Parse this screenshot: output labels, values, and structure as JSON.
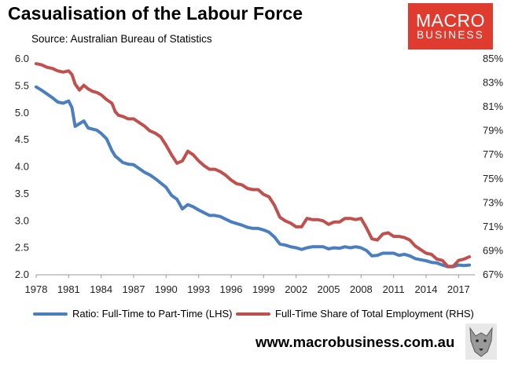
{
  "title": "Casualisation of the Labour Force",
  "source": "Source: Australian Bureau of Statistics",
  "logo": {
    "line1": "MACRO",
    "line2": "BUSINESS",
    "color": "#e03b2f"
  },
  "website": "www.macrobusiness.com.au",
  "chart_data": {
    "type": "line",
    "title": "Casualisation of the Labour Force",
    "x_ticks": [
      "1978",
      "1981",
      "1984",
      "1987",
      "1990",
      "1993",
      "1996",
      "1999",
      "2002",
      "2005",
      "2008",
      "2011",
      "2014",
      "2017"
    ],
    "left_axis": {
      "label": "LHS",
      "ylim": [
        2.0,
        6.0
      ],
      "ticks": [
        "6.0",
        "5.5",
        "5.0",
        "4.5",
        "4.0",
        "3.5",
        "3.0",
        "2.5",
        "2.0"
      ]
    },
    "right_axis": {
      "label": "RHS",
      "ylim": [
        67,
        85
      ],
      "ticks": [
        "85%",
        "83%",
        "81%",
        "79%",
        "77%",
        "75%",
        "73%",
        "71%",
        "69%",
        "67%"
      ]
    },
    "xlim": [
      1978,
      2018.5
    ],
    "series": [
      {
        "name": "Ratio: Full-Time to Part-Time (LHS)",
        "axis": "left",
        "color": "#4a7ebf",
        "x": [
          1978,
          1978.5,
          1979,
          1979.5,
          1980,
          1980.5,
          1981,
          1981.3,
          1981.6,
          1982,
          1982.4,
          1982.8,
          1983.2,
          1983.6,
          1984,
          1984.5,
          1985,
          1985.3,
          1985.6,
          1986,
          1986.5,
          1987,
          1987.5,
          1988,
          1988.5,
          1989,
          1989.5,
          1990,
          1990.5,
          1991,
          1991.5,
          1992,
          1992.5,
          1993,
          1993.5,
          1994,
          1994.5,
          1995,
          1995.5,
          1996,
          1996.5,
          1997,
          1997.5,
          1998,
          1998.5,
          1999,
          1999.5,
          2000,
          2000.5,
          2001,
          2001.5,
          2002,
          2002.5,
          2003,
          2003.5,
          2004,
          2004.5,
          2005,
          2005.5,
          2006,
          2006.5,
          2007,
          2007.5,
          2008,
          2008.5,
          2009,
          2009.5,
          2010,
          2010.5,
          2011,
          2011.5,
          2012,
          2012.5,
          2013,
          2013.5,
          2014,
          2014.5,
          2015,
          2015.5,
          2016,
          2016.5,
          2017,
          2017.5,
          2018
        ],
        "values": [
          5.48,
          5.42,
          5.35,
          5.28,
          5.2,
          5.18,
          5.22,
          5.1,
          4.75,
          4.8,
          4.85,
          4.72,
          4.7,
          4.68,
          4.62,
          4.52,
          4.3,
          4.2,
          4.15,
          4.08,
          4.05,
          4.04,
          3.97,
          3.9,
          3.85,
          3.78,
          3.7,
          3.62,
          3.47,
          3.4,
          3.22,
          3.3,
          3.26,
          3.2,
          3.15,
          3.1,
          3.1,
          3.08,
          3.03,
          2.98,
          2.95,
          2.92,
          2.88,
          2.86,
          2.86,
          2.83,
          2.79,
          2.7,
          2.57,
          2.55,
          2.52,
          2.5,
          2.47,
          2.5,
          2.52,
          2.52,
          2.52,
          2.48,
          2.5,
          2.49,
          2.52,
          2.5,
          2.52,
          2.5,
          2.45,
          2.35,
          2.36,
          2.4,
          2.4,
          2.4,
          2.36,
          2.38,
          2.35,
          2.3,
          2.28,
          2.26,
          2.23,
          2.22,
          2.18,
          2.15,
          2.15,
          2.18,
          2.17,
          2.18
        ]
      },
      {
        "name": "Full-Time Share of Total Employment (RHS)",
        "axis": "right",
        "color": "#c0504d",
        "x": [
          1978,
          1978.5,
          1979,
          1979.5,
          1980,
          1980.5,
          1981,
          1981.3,
          1981.6,
          1982,
          1982.4,
          1982.8,
          1983.2,
          1983.6,
          1984,
          1984.5,
          1985,
          1985.3,
          1985.6,
          1986,
          1986.5,
          1987,
          1987.5,
          1988,
          1988.5,
          1989,
          1989.5,
          1990,
          1990.5,
          1991,
          1991.5,
          1992,
          1992.5,
          1993,
          1993.5,
          1994,
          1994.5,
          1995,
          1995.5,
          1996,
          1996.5,
          1997,
          1997.5,
          1998,
          1998.5,
          1999,
          1999.5,
          2000,
          2000.5,
          2001,
          2001.5,
          2002,
          2002.5,
          2003,
          2003.5,
          2004,
          2004.5,
          2005,
          2005.5,
          2006,
          2006.5,
          2007,
          2007.5,
          2008,
          2008.5,
          2009,
          2009.5,
          2010,
          2010.5,
          2011,
          2011.5,
          2012,
          2012.5,
          2013,
          2013.5,
          2014,
          2014.5,
          2015,
          2015.5,
          2016,
          2016.5,
          2017,
          2017.5,
          2018
        ],
        "values": [
          84.6,
          84.5,
          84.3,
          84.2,
          84.0,
          83.9,
          84.0,
          83.7,
          82.9,
          82.4,
          82.8,
          82.5,
          82.3,
          82.2,
          82.0,
          81.6,
          81.3,
          80.6,
          80.3,
          80.2,
          80.0,
          80.0,
          79.7,
          79.4,
          79.0,
          78.8,
          78.5,
          77.8,
          77.0,
          76.3,
          76.5,
          77.3,
          77.0,
          76.5,
          76.1,
          75.8,
          75.8,
          75.6,
          75.3,
          74.9,
          74.6,
          74.5,
          74.2,
          74.1,
          74.1,
          73.7,
          73.5,
          72.8,
          71.8,
          71.5,
          71.3,
          71.0,
          71.0,
          71.7,
          71.6,
          71.6,
          71.5,
          71.2,
          71.4,
          71.4,
          71.7,
          71.7,
          71.6,
          71.7,
          70.9,
          70.0,
          69.9,
          70.4,
          70.5,
          70.2,
          70.2,
          70.1,
          69.9,
          69.4,
          69.1,
          68.8,
          68.7,
          68.3,
          68.2,
          67.7,
          67.7,
          68.2,
          68.3,
          68.5
        ]
      }
    ],
    "legend_position": "bottom"
  }
}
